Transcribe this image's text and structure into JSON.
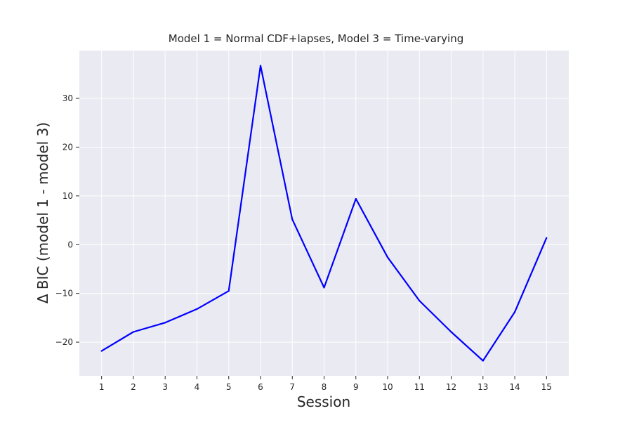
{
  "chart_data": {
    "type": "line",
    "title": "Model 1 = Normal CDF+lapses, Model 3 = Time-varying",
    "xlabel": "Session",
    "ylabel": "Δ BIC (model 1 - model 3)",
    "x": [
      1,
      2,
      3,
      4,
      5,
      6,
      7,
      8,
      9,
      10,
      11,
      12,
      13,
      14,
      15
    ],
    "series": [
      {
        "values": [
          -21.8,
          -17.9,
          -16.0,
          -13.2,
          -9.5,
          36.7,
          5.2,
          -8.8,
          9.4,
          -2.6,
          -11.5,
          -17.9,
          -23.8,
          -13.8,
          1.4
        ]
      }
    ],
    "xticks": [
      "1",
      "2",
      "3",
      "4",
      "5",
      "6",
      "7",
      "8",
      "9",
      "10",
      "11",
      "12",
      "13",
      "14",
      "15"
    ],
    "yticks": [
      "−20",
      "−10",
      "0",
      "10",
      "20",
      "30"
    ],
    "ytick_values": [
      -20,
      -10,
      0,
      10,
      20,
      30
    ],
    "xlim": [
      0.3,
      15.7
    ],
    "ylim": [
      -26.9,
      39.8
    ],
    "grid": true,
    "colors": {
      "line": "#0000ff",
      "plot_background": "#eaeaf2",
      "grid": "#ffffff",
      "text": "#262626"
    }
  }
}
